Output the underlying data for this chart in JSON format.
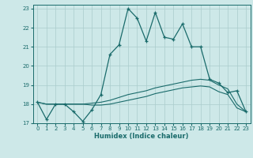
{
  "xlabel": "Humidex (Indice chaleur)",
  "bg_color": "#cde8e8",
  "line_color": "#1a6b6b",
  "grid_color": "#aacccc",
  "xlim": [
    -0.5,
    23.5
  ],
  "ylim": [
    17,
    23.2
  ],
  "yticks": [
    17,
    18,
    19,
    20,
    21,
    22,
    23
  ],
  "xticks": [
    0,
    1,
    2,
    3,
    4,
    5,
    6,
    7,
    8,
    9,
    10,
    11,
    12,
    13,
    14,
    15,
    16,
    17,
    18,
    19,
    20,
    21,
    22,
    23
  ],
  "line1_x": [
    0,
    1,
    2,
    3,
    4,
    5,
    6,
    7,
    8,
    9,
    10,
    11,
    12,
    13,
    14,
    15,
    16,
    17,
    18,
    19,
    20,
    21,
    22,
    23
  ],
  "line1_y": [
    18.1,
    17.2,
    18.0,
    18.0,
    17.6,
    17.1,
    17.7,
    18.5,
    20.6,
    21.1,
    23.0,
    22.5,
    21.3,
    22.8,
    21.5,
    21.4,
    22.2,
    21.0,
    21.0,
    19.3,
    19.1,
    18.6,
    18.7,
    17.6
  ],
  "line2_x": [
    0,
    1,
    2,
    3,
    4,
    5,
    6,
    7,
    8,
    9,
    10,
    11,
    12,
    13,
    14,
    15,
    16,
    17,
    18,
    19,
    20,
    21,
    22,
    23
  ],
  "line2_y": [
    18.1,
    18.0,
    18.0,
    18.0,
    18.0,
    18.0,
    18.05,
    18.1,
    18.2,
    18.35,
    18.5,
    18.6,
    18.7,
    18.85,
    18.95,
    19.05,
    19.15,
    19.25,
    19.3,
    19.25,
    19.0,
    18.8,
    18.0,
    17.6
  ],
  "line3_x": [
    0,
    1,
    2,
    3,
    4,
    5,
    6,
    7,
    8,
    9,
    10,
    11,
    12,
    13,
    14,
    15,
    16,
    17,
    18,
    19,
    20,
    21,
    22,
    23
  ],
  "line3_y": [
    18.1,
    18.0,
    18.0,
    18.0,
    18.0,
    18.0,
    17.95,
    17.95,
    18.0,
    18.1,
    18.2,
    18.3,
    18.4,
    18.55,
    18.65,
    18.75,
    18.85,
    18.9,
    18.95,
    18.9,
    18.65,
    18.5,
    17.8,
    17.6
  ]
}
